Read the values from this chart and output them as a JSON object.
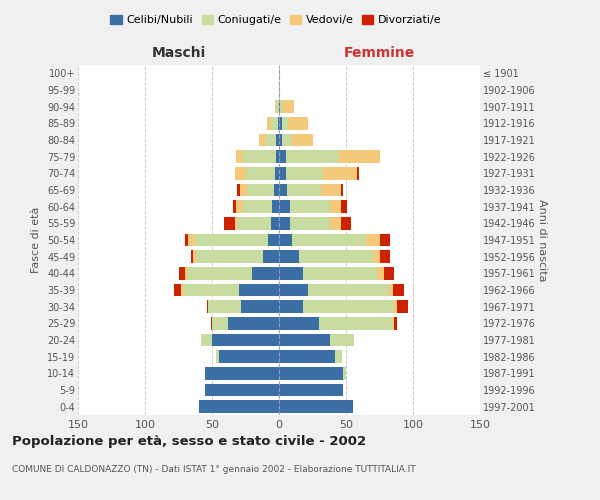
{
  "age_groups": [
    "0-4",
    "5-9",
    "10-14",
    "15-19",
    "20-24",
    "25-29",
    "30-34",
    "35-39",
    "40-44",
    "45-49",
    "50-54",
    "55-59",
    "60-64",
    "65-69",
    "70-74",
    "75-79",
    "80-84",
    "85-89",
    "90-94",
    "95-99",
    "100+"
  ],
  "birth_years": [
    "1997-2001",
    "1992-1996",
    "1987-1991",
    "1982-1986",
    "1977-1981",
    "1972-1976",
    "1967-1971",
    "1962-1966",
    "1957-1961",
    "1952-1956",
    "1947-1951",
    "1942-1946",
    "1937-1941",
    "1932-1936",
    "1927-1931",
    "1922-1926",
    "1917-1921",
    "1912-1916",
    "1907-1911",
    "1902-1906",
    "≤ 1901"
  ],
  "maschi": {
    "celibe": [
      60,
      55,
      55,
      45,
      50,
      38,
      28,
      30,
      20,
      12,
      8,
      6,
      5,
      4,
      3,
      2,
      2,
      1,
      0,
      0,
      0
    ],
    "coniugato": [
      0,
      0,
      0,
      2,
      8,
      12,
      25,
      42,
      48,
      50,
      55,
      25,
      22,
      20,
      22,
      25,
      8,
      5,
      2,
      0,
      0
    ],
    "vedovo": [
      0,
      0,
      0,
      0,
      0,
      0,
      0,
      1,
      2,
      2,
      5,
      2,
      5,
      5,
      8,
      5,
      5,
      3,
      1,
      0,
      0
    ],
    "divorziato": [
      0,
      0,
      0,
      0,
      0,
      1,
      1,
      5,
      5,
      2,
      2,
      8,
      2,
      2,
      0,
      0,
      0,
      0,
      0,
      0,
      0
    ]
  },
  "femmine": {
    "nubile": [
      55,
      48,
      48,
      42,
      38,
      30,
      18,
      22,
      18,
      15,
      10,
      8,
      8,
      6,
      5,
      5,
      2,
      2,
      1,
      0,
      0
    ],
    "coniugata": [
      0,
      0,
      2,
      5,
      18,
      55,
      68,
      60,
      55,
      55,
      55,
      30,
      30,
      25,
      28,
      40,
      8,
      5,
      2,
      0,
      0
    ],
    "vedova": [
      0,
      0,
      0,
      0,
      0,
      1,
      2,
      3,
      5,
      5,
      10,
      8,
      8,
      15,
      25,
      30,
      15,
      15,
      8,
      1,
      1
    ],
    "divorziata": [
      0,
      0,
      0,
      0,
      0,
      2,
      8,
      8,
      8,
      8,
      8,
      8,
      5,
      2,
      2,
      0,
      0,
      0,
      0,
      0,
      0
    ]
  },
  "colors": {
    "celibe_nubile": "#3a6ea5",
    "coniugato": "#c8dba0",
    "vedovo": "#f5c97a",
    "divorziato": "#cc2200"
  },
  "title": "Popolazione per età, sesso e stato civile - 2002",
  "subtitle": "COMUNE DI CALDONAZZO (TN) - Dati ISTAT 1° gennaio 2002 - Elaborazione TUTTITALIA.IT",
  "xlabel_left": "Maschi",
  "xlabel_right": "Femmine",
  "ylabel_left": "Fasce di età",
  "ylabel_right": "Anni di nascita",
  "xlim": 150,
  "legend_labels": [
    "Celibi/Nubili",
    "Coniugati/e",
    "Vedovi/e",
    "Divorziati/e"
  ],
  "bg_color": "#f0f0f0",
  "plot_bg_color": "#ffffff"
}
